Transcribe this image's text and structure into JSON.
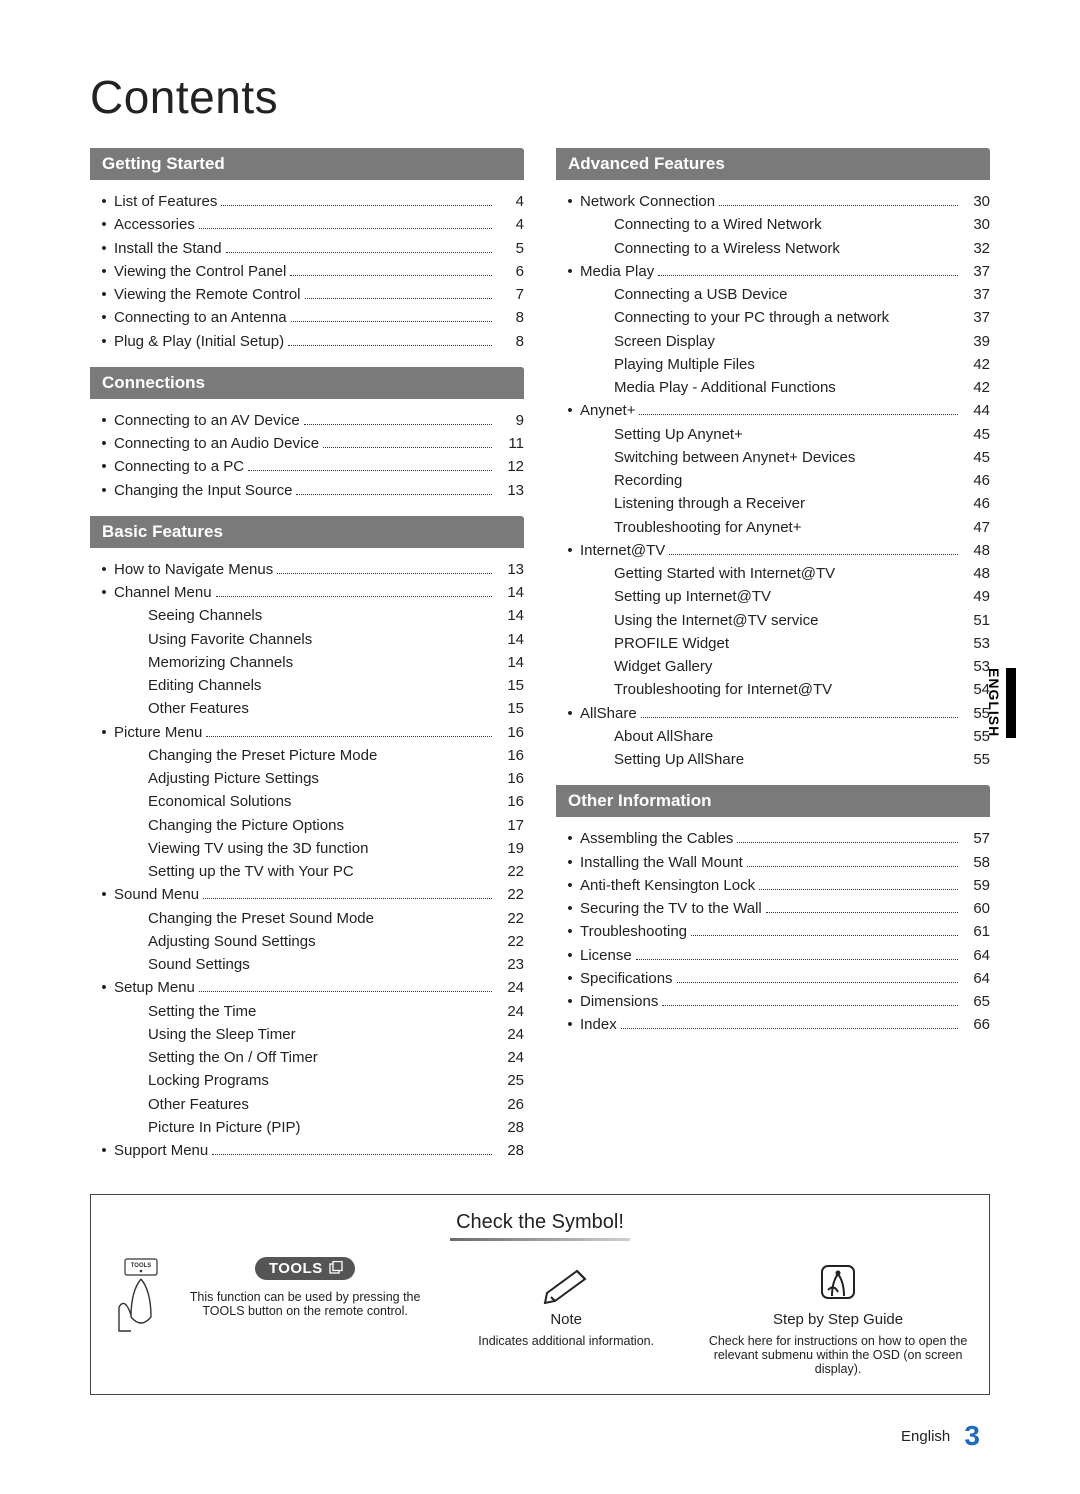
{
  "title": "Contents",
  "side_tab": "ENGLISH",
  "footer_lang": "English",
  "footer_page": "3",
  "colors": {
    "section_header_bg": "#7a7a7a",
    "section_header_fg": "#ffffff",
    "text": "#222222",
    "page_number_color": "#1a6bbf",
    "tools_badge_bg": "#555555"
  },
  "columns_left": [
    {
      "header": "Getting Started",
      "items": [
        {
          "label": "List of Features",
          "page": "4",
          "dots": true,
          "bullet": true
        },
        {
          "label": "Accessories",
          "page": "4",
          "dots": true,
          "bullet": true
        },
        {
          "label": "Install the Stand",
          "page": "5",
          "dots": true,
          "bullet": true
        },
        {
          "label": "Viewing the Control Panel",
          "page": "6",
          "dots": true,
          "bullet": true
        },
        {
          "label": "Viewing the Remote Control",
          "page": "7",
          "dots": true,
          "bullet": true
        },
        {
          "label": "Connecting to an Antenna",
          "page": "8",
          "dots": true,
          "bullet": true
        },
        {
          "label": "Plug & Play (Initial Setup)",
          "page": "8",
          "dots": true,
          "bullet": true
        }
      ]
    },
    {
      "header": "Connections",
      "items": [
        {
          "label": "Connecting to an AV Device",
          "page": "9",
          "dots": true,
          "bullet": true
        },
        {
          "label": "Connecting to an Audio Device",
          "page": "11",
          "dots": true,
          "bullet": true
        },
        {
          "label": "Connecting to a PC",
          "page": "12",
          "dots": true,
          "bullet": true
        },
        {
          "label": "Changing the Input Source",
          "page": "13",
          "dots": true,
          "bullet": true
        }
      ]
    },
    {
      "header": "Basic Features",
      "items": [
        {
          "label": "How to Navigate Menus",
          "page": "13",
          "dots": true,
          "bullet": true
        },
        {
          "label": "Channel Menu",
          "page": "14",
          "dots": true,
          "bullet": true
        },
        {
          "label": "Seeing Channels",
          "page": "14",
          "sub": true
        },
        {
          "label": "Using Favorite Channels",
          "page": "14",
          "sub": true
        },
        {
          "label": "Memorizing Channels",
          "page": "14",
          "sub": true
        },
        {
          "label": "Editing Channels",
          "page": "15",
          "sub": true
        },
        {
          "label": "Other Features",
          "page": "15",
          "sub": true
        },
        {
          "label": "Picture Menu",
          "page": "16",
          "dots": true,
          "bullet": true
        },
        {
          "label": "Changing the Preset Picture Mode",
          "page": "16",
          "sub": true
        },
        {
          "label": "Adjusting Picture Settings",
          "page": "16",
          "sub": true
        },
        {
          "label": "Economical Solutions",
          "page": "16",
          "sub": true
        },
        {
          "label": "Changing the Picture Options",
          "page": "17",
          "sub": true
        },
        {
          "label": "Viewing TV using the 3D function",
          "page": "19",
          "sub": true
        },
        {
          "label": "Setting up the TV with Your PC",
          "page": "22",
          "sub": true
        },
        {
          "label": "Sound Menu",
          "page": "22",
          "dots": true,
          "bullet": true
        },
        {
          "label": "Changing the Preset Sound Mode",
          "page": "22",
          "sub": true
        },
        {
          "label": "Adjusting Sound Settings",
          "page": "22",
          "sub": true
        },
        {
          "label": "Sound Settings",
          "page": "23",
          "sub": true
        },
        {
          "label": "Setup Menu",
          "page": "24",
          "dots": true,
          "bullet": true
        },
        {
          "label": "Setting the Time",
          "page": "24",
          "sub": true
        },
        {
          "label": "Using the Sleep Timer",
          "page": "24",
          "sub": true
        },
        {
          "label": "Setting the On / Off Timer",
          "page": "24",
          "sub": true
        },
        {
          "label": "Locking Programs",
          "page": "25",
          "sub": true
        },
        {
          "label": "Other Features",
          "page": "26",
          "sub": true
        },
        {
          "label": "Picture In Picture (PIP)",
          "page": "28",
          "sub": true
        },
        {
          "label": "Support Menu",
          "page": "28",
          "dots": true,
          "bullet": true
        }
      ]
    }
  ],
  "columns_right": [
    {
      "header": "Advanced Features",
      "items": [
        {
          "label": "Network Connection",
          "page": "30",
          "dots": true,
          "bullet": true
        },
        {
          "label": "Connecting to a Wired Network",
          "page": "30",
          "sub": true
        },
        {
          "label": "Connecting to a Wireless Network",
          "page": "32",
          "sub": true
        },
        {
          "label": "Media Play",
          "page": "37",
          "dots": true,
          "bullet": true
        },
        {
          "label": "Connecting a USB Device",
          "page": "37",
          "sub": true
        },
        {
          "label": "Connecting to your PC through a network",
          "page": "37",
          "sub": true
        },
        {
          "label": "Screen Display",
          "page": "39",
          "sub": true
        },
        {
          "label": "Playing Multiple Files",
          "page": "42",
          "sub": true
        },
        {
          "label": "Media Play - Additional Functions",
          "page": "42",
          "sub": true
        },
        {
          "label": "Anynet+",
          "page": "44",
          "dots": true,
          "bullet": true
        },
        {
          "label": "Setting Up Anynet+",
          "page": "45",
          "sub": true
        },
        {
          "label": "Switching between Anynet+ Devices",
          "page": "45",
          "sub": true
        },
        {
          "label": "Recording",
          "page": "46",
          "sub": true
        },
        {
          "label": "Listening through a Receiver",
          "page": "46",
          "sub": true
        },
        {
          "label": "Troubleshooting for Anynet+",
          "page": "47",
          "sub": true
        },
        {
          "label": "Internet@TV",
          "page": "48",
          "dots": true,
          "bullet": true
        },
        {
          "label": "Getting Started with Internet@TV",
          "page": "48",
          "sub": true
        },
        {
          "label": "Setting up Internet@TV",
          "page": "49",
          "sub": true
        },
        {
          "label": "Using the Internet@TV service",
          "page": "51",
          "sub": true
        },
        {
          "label": "PROFILE Widget",
          "page": "53",
          "sub": true
        },
        {
          "label": "Widget Gallery",
          "page": "53",
          "sub": true
        },
        {
          "label": "Troubleshooting for Internet@TV",
          "page": "54",
          "sub": true
        },
        {
          "label": "AllShare",
          "page": "55",
          "dots": true,
          "bullet": true
        },
        {
          "label": "About AllShare",
          "page": "55",
          "sub": true
        },
        {
          "label": "Setting Up AllShare",
          "page": "55",
          "sub": true
        }
      ]
    },
    {
      "header": "Other Information",
      "items": [
        {
          "label": "Assembling the Cables",
          "page": "57",
          "dots": true,
          "bullet": true
        },
        {
          "label": "Installing the Wall Mount",
          "page": "58",
          "dots": true,
          "bullet": true
        },
        {
          "label": "Anti-theft Kensington Lock",
          "page": "59",
          "dots": true,
          "bullet": true
        },
        {
          "label": "Securing the TV to the Wall",
          "page": "60",
          "dots": true,
          "bullet": true
        },
        {
          "label": "Troubleshooting",
          "page": "61",
          "dots": true,
          "bullet": true
        },
        {
          "label": "License",
          "page": "64",
          "dots": true,
          "bullet": true
        },
        {
          "label": "Specifications",
          "page": "64",
          "dots": true,
          "bullet": true
        },
        {
          "label": "Dimensions",
          "page": "65",
          "dots": true,
          "bullet": true
        },
        {
          "label": "Index",
          "page": "66",
          "dots": true,
          "bullet": true
        }
      ]
    }
  ],
  "symbol_box": {
    "title": "Check the Symbol!",
    "tools_label": "TOOLS",
    "tools_desc": "This function can be used by pressing the TOOLS button on the remote control.",
    "note_head": "Note",
    "note_desc": "Indicates additional information.",
    "guide_head": "Step by Step Guide",
    "guide_desc": "Check here for instructions on how to open the relevant submenu within the OSD (on screen display)."
  }
}
